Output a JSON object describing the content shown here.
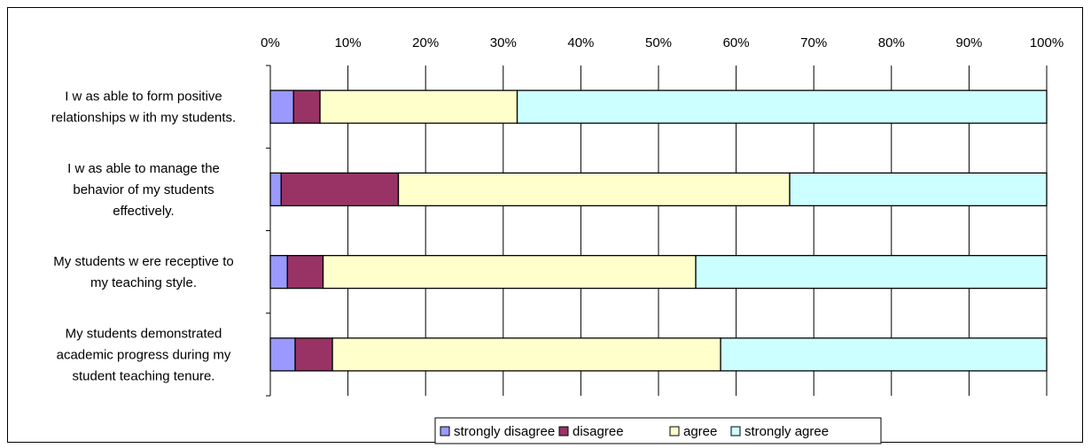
{
  "chart_data": {
    "type": "bar",
    "orientation": "horizontal",
    "stacked": "100%",
    "x_ticks": [
      "0%",
      "10%",
      "20%",
      "30%",
      "40%",
      "50%",
      "60%",
      "70%",
      "80%",
      "90%",
      "100%"
    ],
    "xlim": [
      0,
      100
    ],
    "grid": true,
    "legend_position": "bottom",
    "categories": [
      [
        "I w as able to form positive",
        "relationships w ith my students."
      ],
      [
        "I w as able to manage the",
        "behavior of my students",
        "effectively."
      ],
      [
        "My students w ere receptive to",
        "my teaching style."
      ],
      [
        "My students demonstrated",
        "academic progress during my",
        "student teaching tenure."
      ]
    ],
    "series": [
      {
        "name": "strongly disagree",
        "color": "#9999FF",
        "values": [
          3.0,
          1.4,
          2.2,
          3.2
        ]
      },
      {
        "name": "disagree",
        "color": "#993366",
        "values": [
          3.4,
          15.1,
          4.6,
          4.8
        ]
      },
      {
        "name": "agree",
        "color": "#FFFFCC",
        "values": [
          25.4,
          50.4,
          48.0,
          50.0
        ]
      },
      {
        "name": "strongly agree",
        "color": "#CCFFFF",
        "values": [
          68.2,
          33.1,
          45.2,
          42.0
        ]
      }
    ]
  }
}
